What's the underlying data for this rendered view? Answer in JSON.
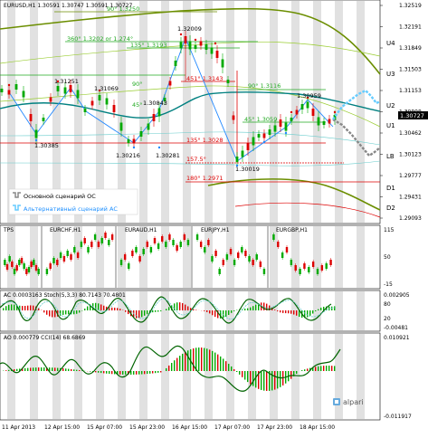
{
  "header": {
    "symbol_info": "EURUSD,H1  1.30591 1.30747 1.30591 1.30727"
  },
  "price_axis": {
    "ticks": [
      "1.32519",
      "1.32191",
      "1.31849",
      "1.31503",
      "1.31153",
      "1.30808",
      "1.30462",
      "1.30123",
      "1.29777",
      "1.29431",
      "1.29093"
    ],
    "current": "1.30727"
  },
  "zone_labels": {
    "u4": "U4",
    "u3": "U3",
    "u2": "U2",
    "u1": "U1",
    "lb": "LB",
    "d1": "D1",
    "d2": "D2"
  },
  "levels": {
    "l90_top": "90° 1.3250",
    "l360": "360° 1.3202 or 1.274°",
    "l135": "135° 1.3193",
    "l90": "90°",
    "l45_top": "45°",
    "l451": "451° 1.3143",
    "l90_mid": "90° 1.3116",
    "l45": "45° 1.3059",
    "l135_low": "135° 1.3028",
    "l157": "157.5°",
    "l180": "180° 1.2971"
  },
  "prices": {
    "p13209": "1.32009",
    "p13125": "1.31251",
    "p13109": "1.31069",
    "p13084": "1.30843",
    "p13095": "1.30959",
    "p13038": "1.30385",
    "p13021": "1.30216",
    "p13028": "1.30281",
    "p13001": "1.30019"
  },
  "legend": {
    "main": "Основной сценарий ОС",
    "alt": "Альтернативный сценарий АС"
  },
  "sub_tps": {
    "title": "TPS",
    "pairs": [
      "EURCHF,H1",
      "EURAUD,H1",
      "EURJPY,H1",
      "EURGBP,H1"
    ],
    "ticks": [
      "115",
      "50",
      "-15"
    ]
  },
  "sub_ac": {
    "title": "AC 0.0003163  Stoch(5,3,3) 80.7143 70.4801",
    "ticks": [
      "0.002905",
      "80",
      "20",
      "-0.00481"
    ]
  },
  "sub_ao": {
    "title": "AO 0.000779  CCI(14) 68.6869",
    "ticks": [
      "0.010921",
      "-0.011917"
    ]
  },
  "time_axis": {
    "labels": [
      "11 Apr 2013",
      "12 Apr 15:00",
      "15 Apr 07:00",
      "15 Apr 23:00",
      "16 Apr 15:00",
      "17 Apr 07:00",
      "17 Apr 23:00",
      "18 Apr 15:00"
    ]
  },
  "branding": {
    "logo": "alpari"
  },
  "colors": {
    "bull": "#00aa00",
    "bear": "#dd0000",
    "main_scenario": "#888888",
    "alt_scenario": "#66ccff",
    "ma": "#008080",
    "channel": "#6b8e00"
  }
}
